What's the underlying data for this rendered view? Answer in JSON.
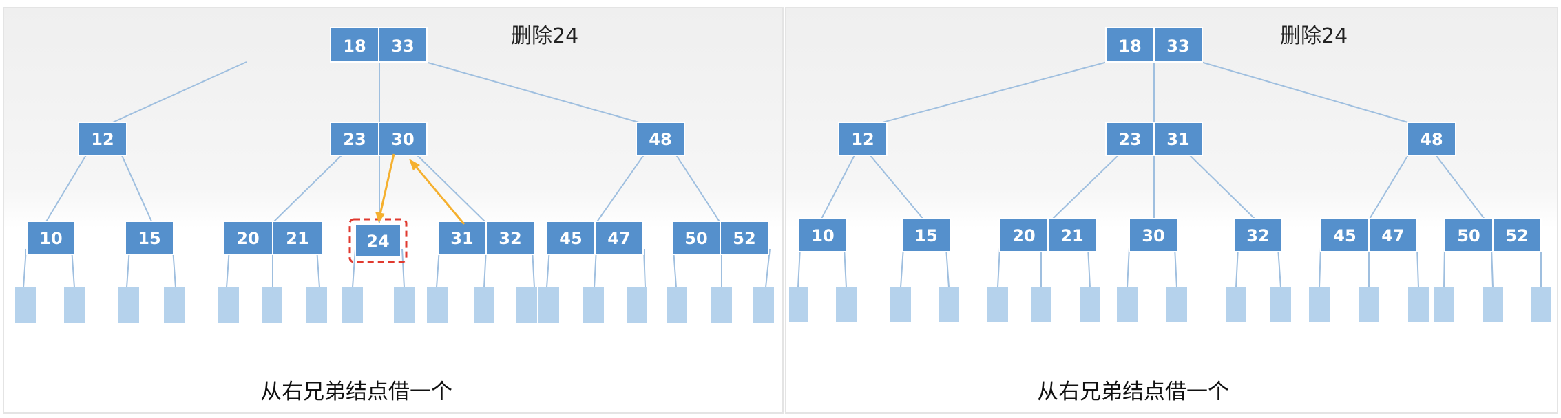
{
  "panels": [
    {
      "title": "删除24",
      "caption": "从右兄弟结点借一个",
      "root": [
        "18",
        "33"
      ],
      "level1": [
        [
          "12"
        ],
        [
          "23",
          "30"
        ],
        [
          "48"
        ]
      ],
      "level2": [
        [
          "10"
        ],
        [
          "15"
        ],
        [
          "20",
          "21"
        ],
        [
          "24"
        ],
        [
          "31",
          "32"
        ],
        [
          "45",
          "47"
        ],
        [
          "50",
          "52"
        ]
      ],
      "highlight_key": "24",
      "arrows": [
        {
          "from": "30",
          "to": "24"
        },
        {
          "from": "31",
          "to": "30"
        }
      ]
    },
    {
      "title": "删除24",
      "caption": "从右兄弟结点借一个",
      "root": [
        "18",
        "33"
      ],
      "level1": [
        [
          "12"
        ],
        [
          "23",
          "31"
        ],
        [
          "48"
        ]
      ],
      "level2": [
        [
          "10"
        ],
        [
          "15"
        ],
        [
          "20",
          "21"
        ],
        [
          "30"
        ],
        [
          "32"
        ],
        [
          "45",
          "47"
        ],
        [
          "50",
          "52"
        ]
      ]
    }
  ],
  "colors": {
    "node": "#5590cc",
    "leaf": "#b5d2ec",
    "edge": "#9fbfdf",
    "arrow": "#f5b02e",
    "highlight": "#e03a2f"
  }
}
